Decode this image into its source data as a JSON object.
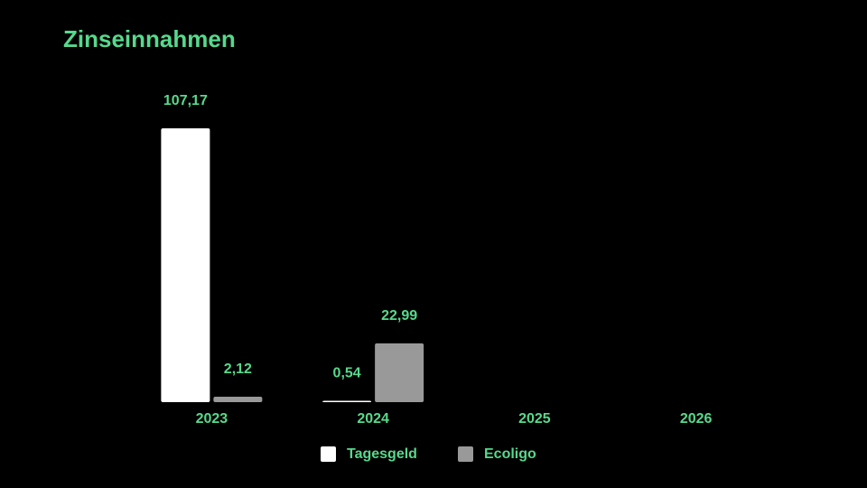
{
  "chart_data": {
    "type": "bar",
    "title": "Zinseinnahmen",
    "categories": [
      "2023",
      "2024",
      "2025",
      "2026"
    ],
    "series": [
      {
        "name": "Tagesgeld",
        "color": "#ffffff",
        "values": [
          107.17,
          0.54,
          null,
          null
        ],
        "value_labels": [
          "107,17",
          "0,54",
          null,
          null
        ]
      },
      {
        "name": "Ecoligo",
        "color": "#999999",
        "values": [
          2.12,
          22.99,
          null,
          null
        ],
        "value_labels": [
          "2,12",
          "22,99",
          null,
          null
        ]
      }
    ]
  }
}
